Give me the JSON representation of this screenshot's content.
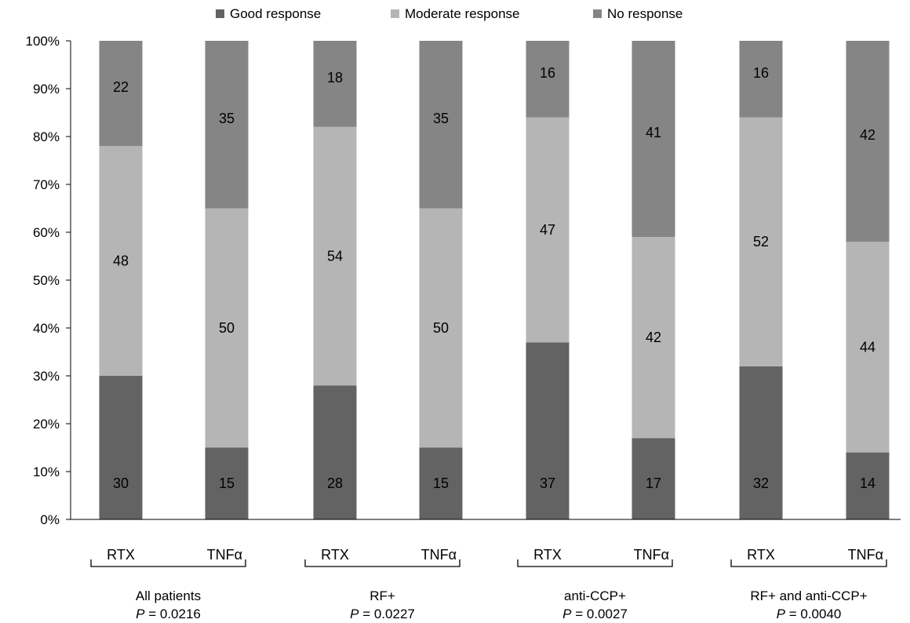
{
  "chart_data": {
    "type": "bar",
    "stacked": true,
    "percent_scale": true,
    "ylim": [
      0,
      100
    ],
    "y_ticks": [
      "0%",
      "10%",
      "20%",
      "30%",
      "40%",
      "50%",
      "60%",
      "70%",
      "80%",
      "90%",
      "100%"
    ],
    "legend": {
      "placement": "top"
    },
    "series": [
      {
        "name": "Good response",
        "color": "#636363",
        "label_color": "#ffffff",
        "values": [
          30,
          15,
          28,
          15,
          37,
          17,
          32,
          14
        ]
      },
      {
        "name": "Moderate response",
        "color": "#b5b5b5",
        "label_color": "#000000",
        "values": [
          48,
          50,
          54,
          50,
          47,
          42,
          52,
          44
        ]
      },
      {
        "name": "No response",
        "color": "#858585",
        "label_color": "#ffffff",
        "values": [
          22,
          35,
          18,
          35,
          16,
          41,
          16,
          42
        ]
      }
    ],
    "bar_labels": [
      "RTX",
      "TNFα",
      "RTX",
      "TNFα",
      "RTX",
      "TNFα",
      "RTX",
      "TNFα"
    ],
    "groups": [
      {
        "name": "All patients",
        "p_label": "P",
        "p_value": " = 0.0216",
        "bars": [
          0,
          1
        ]
      },
      {
        "name": "RF+",
        "p_label": "P",
        "p_value": " = 0.0227",
        "bars": [
          2,
          3
        ]
      },
      {
        "name": "anti-CCP+",
        "p_label": "P",
        "p_value": " = 0.0027",
        "bars": [
          4,
          5
        ]
      },
      {
        "name": "RF+ and anti-CCP+",
        "p_label": "P",
        "p_value": " = 0.0040",
        "bars": [
          6,
          7
        ]
      }
    ]
  }
}
